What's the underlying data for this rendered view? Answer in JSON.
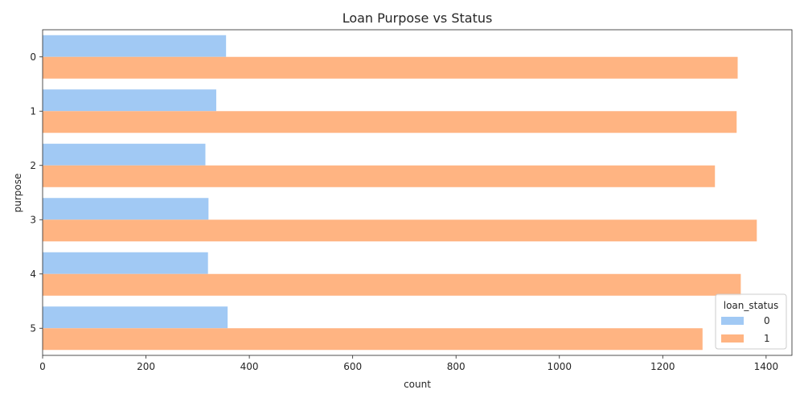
{
  "chart_data": {
    "type": "bar",
    "orientation": "horizontal",
    "title": "Loan Purpose vs Status",
    "xlabel": "count",
    "ylabel": "purpose",
    "categories": [
      "0",
      "1",
      "2",
      "3",
      "4",
      "5"
    ],
    "series": [
      {
        "name": "0",
        "color": "#a1c9f4",
        "values": [
          355,
          336,
          315,
          321,
          320,
          358
        ]
      },
      {
        "name": "1",
        "color": "#ffb482",
        "values": [
          1345,
          1343,
          1301,
          1382,
          1351,
          1277
        ]
      }
    ],
    "xlim": [
      0,
      1450
    ],
    "xticks": [
      "0",
      "200",
      "400",
      "600",
      "800",
      "1000",
      "1200",
      "1400"
    ],
    "legend": {
      "title": "loan_status",
      "position": "lower-right"
    },
    "grid": false
  }
}
